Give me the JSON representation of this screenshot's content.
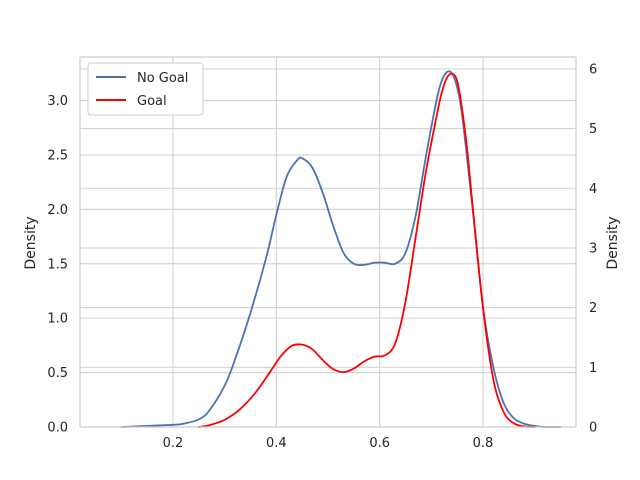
{
  "chart_data": {
    "type": "line",
    "title": "",
    "xlabel": "",
    "ylabel_left": "Density",
    "ylabel_right": "Density",
    "xlim": [
      0.02,
      0.98
    ],
    "ylim_left": [
      0,
      3.4
    ],
    "ylim_right": [
      0,
      6.2
    ],
    "x_ticks": [
      0.2,
      0.4,
      0.6,
      0.8
    ],
    "x_tick_labels": [
      "0.2",
      "0.4",
      "0.6",
      "0.8"
    ],
    "y_ticks_left": [
      0.0,
      0.5,
      1.0,
      1.5,
      2.0,
      2.5,
      3.0
    ],
    "y_tick_labels_left": [
      "0.0",
      "0.5",
      "1.0",
      "1.5",
      "2.0",
      "2.5",
      "3.0"
    ],
    "y_ticks_right": [
      0,
      1,
      2,
      3,
      4,
      5,
      6
    ],
    "y_tick_labels_right": [
      "0",
      "1",
      "2",
      "3",
      "4",
      "5",
      "6"
    ],
    "grid": true,
    "legend_position": "top-left",
    "series": [
      {
        "name": "No Goal",
        "axis": "left",
        "color": "#4c72b0",
        "x": [
          0.1,
          0.15,
          0.2,
          0.22,
          0.25,
          0.27,
          0.3,
          0.32,
          0.35,
          0.38,
          0.4,
          0.42,
          0.44,
          0.45,
          0.47,
          0.49,
          0.51,
          0.53,
          0.55,
          0.57,
          0.59,
          0.61,
          0.63,
          0.65,
          0.67,
          0.69,
          0.71,
          0.72,
          0.73,
          0.74,
          0.75,
          0.76,
          0.78,
          0.8,
          0.82,
          0.84,
          0.86,
          0.88,
          0.9,
          0.92,
          0.95
        ],
        "y": [
          0.0,
          0.01,
          0.02,
          0.03,
          0.07,
          0.15,
          0.38,
          0.62,
          1.05,
          1.55,
          1.95,
          2.3,
          2.45,
          2.47,
          2.38,
          2.15,
          1.85,
          1.6,
          1.5,
          1.49,
          1.51,
          1.51,
          1.5,
          1.6,
          1.95,
          2.5,
          3.0,
          3.18,
          3.26,
          3.25,
          3.12,
          2.85,
          2.0,
          1.1,
          0.55,
          0.22,
          0.08,
          0.03,
          0.01,
          0.0,
          0.0
        ]
      },
      {
        "name": "Goal",
        "axis": "right",
        "color": "#ff0000",
        "x": [
          0.25,
          0.27,
          0.3,
          0.33,
          0.36,
          0.39,
          0.41,
          0.43,
          0.45,
          0.47,
          0.49,
          0.51,
          0.53,
          0.55,
          0.57,
          0.59,
          0.61,
          0.63,
          0.65,
          0.67,
          0.69,
          0.71,
          0.72,
          0.73,
          0.74,
          0.75,
          0.76,
          0.77,
          0.78,
          0.8,
          0.82,
          0.84,
          0.86,
          0.88,
          0.9
        ],
        "y": [
          0.0,
          0.03,
          0.12,
          0.3,
          0.58,
          0.95,
          1.2,
          1.36,
          1.38,
          1.3,
          1.12,
          0.97,
          0.92,
          0.98,
          1.1,
          1.18,
          1.2,
          1.4,
          2.1,
          3.2,
          4.3,
          5.2,
          5.6,
          5.85,
          5.92,
          5.8,
          5.3,
          4.6,
          3.7,
          2.0,
          0.8,
          0.25,
          0.06,
          0.01,
          0.0
        ]
      }
    ]
  }
}
